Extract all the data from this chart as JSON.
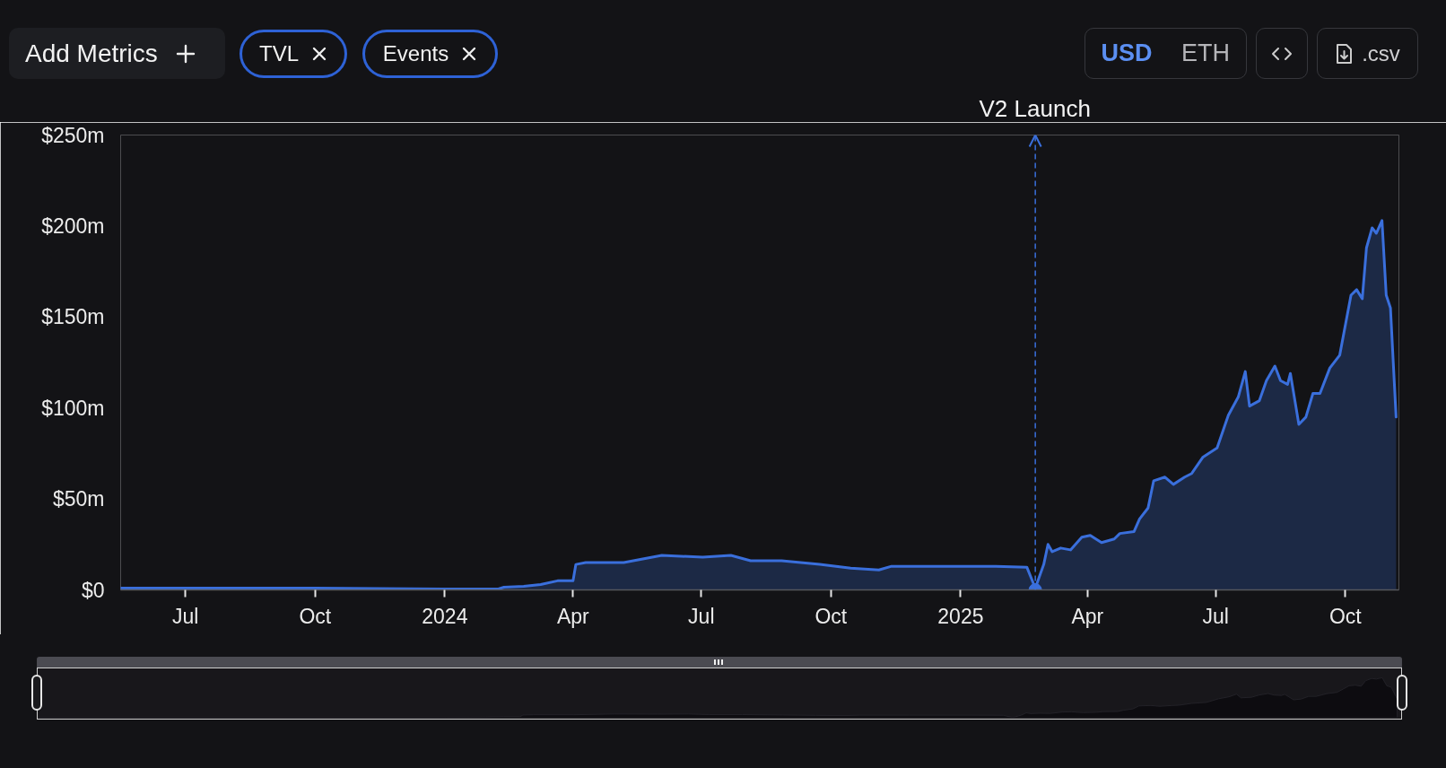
{
  "chart_data": {
    "type": "area",
    "x": [
      "2023-05-16",
      "2023-10-01",
      "2024-01-01",
      "2024-02-08",
      "2024-02-12",
      "2024-02-26",
      "2024-03-09",
      "2024-03-21",
      "2024-04-01",
      "2024-04-03",
      "2024-04-10",
      "2024-05-07",
      "2024-06-03",
      "2024-07-02",
      "2024-07-22",
      "2024-08-05",
      "2024-08-27",
      "2024-09-23",
      "2024-10-15",
      "2024-11-04",
      "2024-11-13",
      "2024-12-16",
      "2025-01-26",
      "2025-02-17",
      "2025-02-23",
      "2025-03-01",
      "2025-03-04",
      "2025-03-07",
      "2025-03-13",
      "2025-03-20",
      "2025-03-28",
      "2025-04-03",
      "2025-04-11",
      "2025-04-20",
      "2025-04-24",
      "2025-05-04",
      "2025-05-08",
      "2025-05-14",
      "2025-05-18",
      "2025-05-26",
      "2025-06-01",
      "2025-06-09",
      "2025-06-14",
      "2025-06-22",
      "2025-07-02",
      "2025-07-10",
      "2025-07-17",
      "2025-07-22",
      "2025-07-25",
      "2025-08-01",
      "2025-08-06",
      "2025-08-12",
      "2025-08-16",
      "2025-08-21",
      "2025-08-23",
      "2025-08-29",
      "2025-09-03",
      "2025-09-08",
      "2025-09-13",
      "2025-09-20",
      "2025-09-27",
      "2025-10-05",
      "2025-10-09",
      "2025-10-13",
      "2025-10-16",
      "2025-10-20",
      "2025-10-23",
      "2025-10-27",
      "2025-10-30",
      "2025-11-02",
      "2025-11-06"
    ],
    "series": [
      {
        "color": "#3a6fdc",
        "values": [
          1,
          1,
          0.5,
          0.5,
          1.5,
          2,
          3,
          5,
          5,
          14,
          15,
          15,
          19,
          18,
          19,
          16,
          16,
          14,
          12,
          11,
          13,
          13,
          13,
          12.5,
          1,
          14,
          25,
          21,
          23,
          22,
          29,
          30,
          26,
          28,
          31,
          32,
          39,
          45,
          60,
          62,
          58,
          62,
          64,
          73,
          78,
          96,
          106,
          120,
          101,
          104,
          115,
          123,
          115,
          113,
          119,
          91,
          95,
          108,
          108,
          122,
          129,
          162,
          165,
          160,
          188,
          199,
          196,
          203,
          162,
          155,
          95
        ]
      }
    ],
    "xlim": [
      "2023-05-16",
      "2025-11-08"
    ],
    "xticks": [
      {
        "value": "2023-07-01",
        "label": "Jul"
      },
      {
        "value": "2023-10-01",
        "label": "Oct"
      },
      {
        "value": "2024-01-01",
        "label": "2024"
      },
      {
        "value": "2024-04-01",
        "label": "Apr"
      },
      {
        "value": "2024-07-01",
        "label": "Jul"
      },
      {
        "value": "2024-10-01",
        "label": "Oct"
      },
      {
        "value": "2025-01-01",
        "label": "2025"
      },
      {
        "value": "2025-04-01",
        "label": "Apr"
      },
      {
        "value": "2025-07-01",
        "label": "Jul"
      },
      {
        "value": "2025-10-01",
        "label": "Oct"
      }
    ],
    "ylim": [
      0,
      250
    ],
    "yticks": [
      {
        "value": 0,
        "label": "$0"
      },
      {
        "value": 50,
        "label": "$50m"
      },
      {
        "value": 100,
        "label": "$100m"
      },
      {
        "value": 150,
        "label": "$150m"
      },
      {
        "value": 200,
        "label": "$200m"
      },
      {
        "value": 250,
        "label": "$250m"
      }
    ],
    "ref_lines": [
      {
        "axis": "x",
        "value": "2025-02-23",
        "label": "V2 Launch",
        "color": "#3a6fdc",
        "line_style": "dashed"
      }
    ],
    "annotations": [
      "Add Metrics",
      "TVL",
      "Events",
      "USD",
      "ETH",
      ".csv"
    ]
  }
}
